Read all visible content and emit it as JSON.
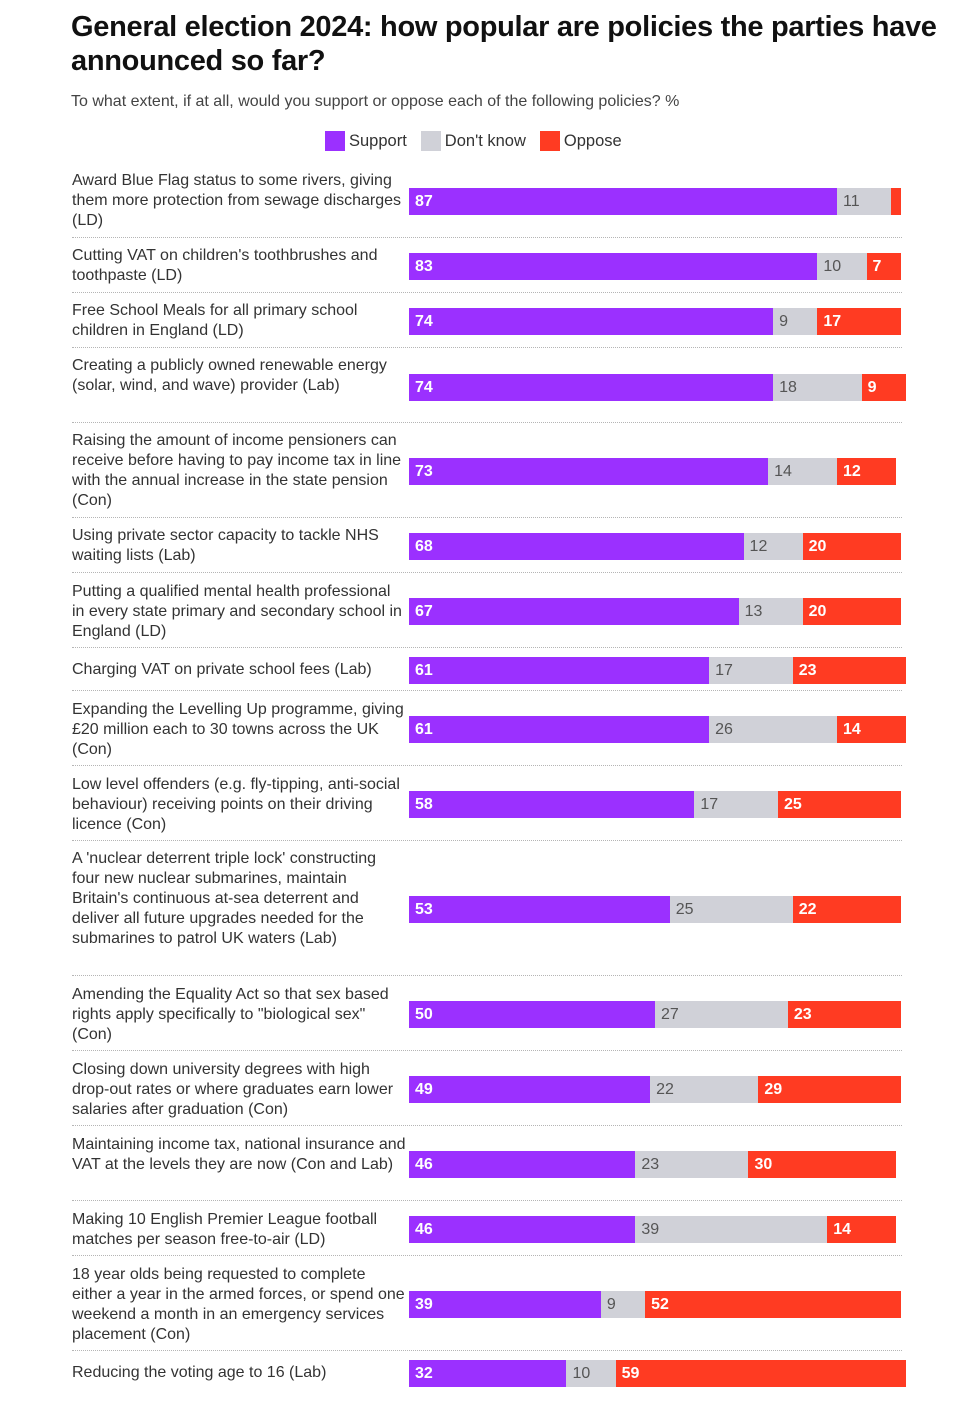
{
  "chart_data": {
    "type": "bar",
    "orientation": "horizontal-stacked",
    "title": "General election 2024: how popular are policies the parties have announced so far?",
    "subtitle": "To what extent, if at all, would you support or oppose each of the following policies? %",
    "legend": [
      {
        "name": "Support",
        "color": "#9b30ff"
      },
      {
        "name": "Don't know",
        "color": "#d0d1d8"
      },
      {
        "name": "Oppose",
        "color": "#ff3b22"
      }
    ],
    "xlim": [
      0,
      100
    ],
    "categories": [
      "Award Blue Flag status to some rivers, giving them more protection from sewage discharges (LD)",
      "Cutting VAT on children's toothbrushes and toothpaste (LD)",
      "Free School Meals for all primary school children in England (LD)",
      "Creating a publicly owned renewable energy (solar, wind, and wave) provider (Lab)",
      "Raising the amount of income pensioners can receive before having to pay income tax in line with the annual increase in the state pension (Con)",
      "Using private sector capacity to tackle NHS waiting lists (Lab)",
      "Putting a qualified mental health professional in every state primary and secondary school in England (LD)",
      "Charging VAT on private school fees (Lab)",
      "Expanding the Levelling Up programme, giving £20 million each to 30 towns across the UK (Con)",
      "Low level offenders (e.g. fly-tipping, anti-social behaviour) receiving points on their driving licence (Con)",
      "A 'nuclear deterrent triple lock' constructing four new nuclear submarines, maintain Britain's continuous at-sea deterrent and deliver all future upgrades needed for the submarines to patrol UK waters (Lab)",
      "Amending the Equality Act so that sex based rights apply specifically to \"biological sex\" (Con)",
      "Closing down university degrees with high drop-out rates or where graduates earn lower salaries after graduation (Con)",
      "Maintaining income tax, national insurance and VAT at the levels they are now (Con and Lab)",
      "Making 10 English Premier League football matches per season free-to-air (LD)",
      "18 year olds being requested to complete either a year in the armed forces, or spend one weekend a month in an emergency services placement (Con)",
      "Reducing the voting age to 16 (Lab)"
    ],
    "series": [
      {
        "name": "Support",
        "values": [
          87,
          83,
          74,
          74,
          73,
          68,
          67,
          61,
          61,
          58,
          53,
          50,
          49,
          46,
          46,
          39,
          32
        ]
      },
      {
        "name": "Don't know",
        "values": [
          11,
          10,
          9,
          18,
          14,
          12,
          13,
          17,
          26,
          17,
          25,
          27,
          22,
          23,
          39,
          9,
          10
        ]
      },
      {
        "name": "Oppose",
        "values": [
          2,
          7,
          17,
          9,
          12,
          20,
          20,
          23,
          14,
          25,
          22,
          23,
          29,
          30,
          14,
          52,
          59
        ]
      }
    ],
    "value_labels": {
      "Support": [
        "87",
        "83",
        "74",
        "74",
        "73",
        "68",
        "67",
        "61",
        "61",
        "58",
        "53",
        "50",
        "49",
        "46",
        "46",
        "39",
        "32"
      ],
      "Don't know": [
        "11",
        "10",
        "9",
        "18",
        "14",
        "12",
        "13",
        "17",
        "26",
        "17",
        "25",
        "27",
        "22",
        "23",
        "39",
        "9",
        "10"
      ],
      "Oppose": [
        "",
        "7",
        "17",
        "9",
        "12",
        "20",
        "20",
        "23",
        "14",
        "25",
        "22",
        "23",
        "29",
        "30",
        "14",
        "52",
        "59"
      ]
    }
  }
}
